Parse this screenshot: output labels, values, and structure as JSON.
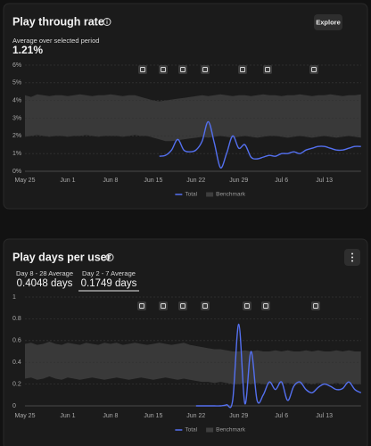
{
  "panels": [
    {
      "title": "Play through rate",
      "action": "Explore",
      "caption": "Average over selected period",
      "metric": "1.21%"
    },
    {
      "title": "Play days per user",
      "tabs": [
        {
          "label": "Day 8 - 28 Average",
          "value": "0.4048 days"
        },
        {
          "label": "Day 2 - 7 Average",
          "value": "0.1749 days"
        }
      ]
    }
  ],
  "chart_data": [
    {
      "type": "line",
      "categories": [
        "May 25",
        null,
        null,
        null,
        null,
        null,
        null,
        "Jun 1",
        null,
        null,
        null,
        null,
        null,
        null,
        "Jun 8",
        null,
        null,
        null,
        null,
        null,
        null,
        "Jun 15",
        null,
        null,
        null,
        null,
        null,
        null,
        "Jun 22",
        null,
        null,
        null,
        null,
        null,
        null,
        "Jun 29",
        null,
        null,
        null,
        null,
        null,
        null,
        "Jul 6",
        null,
        null,
        null,
        null,
        null,
        null,
        "Jul 13",
        null,
        null,
        null,
        null,
        null,
        null
      ],
      "series": [
        {
          "name": "Total",
          "color": "#5470f0",
          "values": [
            null,
            null,
            null,
            null,
            null,
            null,
            null,
            null,
            null,
            null,
            null,
            null,
            null,
            null,
            null,
            null,
            null,
            null,
            null,
            null,
            null,
            null,
            0.85,
            0.9,
            1.2,
            1.8,
            1.2,
            1.1,
            1.2,
            1.7,
            2.8,
            1.6,
            0.2,
            1.0,
            2.0,
            1.3,
            1.5,
            0.8,
            0.7,
            0.8,
            0.9,
            0.85,
            1.0,
            1.0,
            1.1,
            1.0,
            1.2,
            1.3,
            1.4,
            1.4,
            1.3,
            1.2,
            1.2,
            1.3,
            1.4,
            1.4
          ]
        },
        {
          "name": "Benchmark",
          "color": "#3e3e3e",
          "low": [
            1.95,
            2.0,
            2.05,
            2.0,
            1.95,
            2.0,
            2.0,
            1.95,
            2.0,
            2.0,
            2.05,
            2.0,
            1.95,
            2.0,
            2.0,
            2.0,
            1.95,
            2.0,
            2.05,
            2.0,
            2.0,
            1.9,
            1.8,
            1.7,
            1.7,
            1.75,
            1.8,
            1.85,
            1.9,
            1.95,
            1.9,
            1.95,
            2.0,
            1.95,
            1.9,
            1.95,
            2.0,
            1.95,
            1.9,
            1.95,
            2.0,
            2.0,
            1.95,
            1.9,
            1.95,
            2.0,
            1.95,
            1.9,
            1.95,
            2.0,
            1.95,
            1.9,
            1.95,
            2.0,
            1.95,
            1.9
          ],
          "high": [
            4.3,
            4.2,
            4.35,
            4.3,
            4.25,
            4.3,
            4.3,
            4.25,
            4.3,
            4.35,
            4.3,
            4.25,
            4.3,
            4.3,
            4.35,
            4.3,
            4.25,
            4.3,
            4.3,
            4.2,
            4.1,
            4.0,
            3.95,
            4.0,
            4.05,
            4.1,
            4.15,
            4.2,
            4.25,
            4.3,
            4.25,
            4.3,
            4.35,
            4.3,
            4.25,
            4.3,
            4.3,
            4.25,
            4.3,
            4.35,
            4.3,
            4.3,
            4.25,
            4.3,
            4.3,
            4.35,
            4.3,
            4.25,
            4.3,
            4.3,
            4.35,
            4.3,
            4.25,
            4.3,
            4.3,
            4.35
          ]
        }
      ],
      "ylim": [
        0,
        6
      ],
      "yticks": [
        {
          "value": 0,
          "label": "0%"
        },
        {
          "value": 1,
          "label": "1%"
        },
        {
          "value": 2,
          "label": "2%"
        },
        {
          "value": 3,
          "label": "3%"
        },
        {
          "value": 4,
          "label": "4%"
        },
        {
          "value": 5,
          "label": "5%"
        },
        {
          "value": 6,
          "label": "6%"
        }
      ],
      "grid": true
    },
    {
      "type": "line",
      "categories": [
        "May 25",
        null,
        null,
        null,
        null,
        null,
        null,
        "Jun 1",
        null,
        null,
        null,
        null,
        null,
        null,
        "Jun 8",
        null,
        null,
        null,
        null,
        null,
        null,
        "Jun 15",
        null,
        null,
        null,
        null,
        null,
        null,
        "Jun 22",
        null,
        null,
        null,
        null,
        null,
        null,
        "Jun 29",
        null,
        null,
        null,
        null,
        null,
        null,
        "Jul 6",
        null,
        null,
        null,
        null,
        null,
        null,
        "Jul 13",
        null,
        null,
        null,
        null,
        null,
        null
      ],
      "series": [
        {
          "name": "Total",
          "color": "#5470f0",
          "values": [
            null,
            null,
            null,
            null,
            null,
            null,
            null,
            null,
            null,
            null,
            null,
            null,
            null,
            null,
            null,
            null,
            null,
            null,
            null,
            null,
            null,
            null,
            null,
            null,
            null,
            null,
            null,
            null,
            0,
            0,
            0,
            0,
            0,
            0.01,
            0.05,
            0.75,
            0.02,
            0.5,
            0.05,
            0.1,
            0.22,
            0.15,
            0.22,
            0.05,
            0.18,
            0.22,
            0.15,
            0.12,
            0.17,
            0.2,
            0.18,
            0.15,
            0.16,
            0.22,
            0.15,
            0.12
          ]
        },
        {
          "name": "Benchmark",
          "color": "#3e3e3e",
          "low": [
            0.25,
            0.26,
            0.24,
            0.25,
            0.27,
            0.25,
            0.24,
            0.26,
            0.25,
            0.24,
            0.25,
            0.26,
            0.25,
            0.24,
            0.25,
            0.26,
            0.25,
            0.24,
            0.25,
            0.26,
            0.25,
            0.24,
            0.25,
            0.26,
            0.25,
            0.24,
            0.25,
            0.24,
            0.23,
            0.22,
            0.22,
            0.21,
            0.22,
            0.21,
            0.2,
            0.2,
            0.21,
            0.2,
            0.21,
            0.2,
            0.2,
            0.21,
            0.2,
            0.21,
            0.2,
            0.2,
            0.21,
            0.2,
            0.21,
            0.2,
            0.2,
            0.21,
            0.2,
            0.21,
            0.2,
            0.2
          ],
          "high": [
            0.57,
            0.58,
            0.56,
            0.57,
            0.59,
            0.57,
            0.56,
            0.58,
            0.57,
            0.56,
            0.58,
            0.57,
            0.56,
            0.58,
            0.57,
            0.58,
            0.56,
            0.57,
            0.58,
            0.57,
            0.56,
            0.57,
            0.58,
            0.57,
            0.56,
            0.57,
            0.58,
            0.56,
            0.55,
            0.54,
            0.53,
            0.52,
            0.52,
            0.51,
            0.5,
            0.5,
            0.51,
            0.5,
            0.51,
            0.5,
            0.5,
            0.51,
            0.5,
            0.51,
            0.5,
            0.5,
            0.51,
            0.5,
            0.51,
            0.5,
            0.5,
            0.51,
            0.5,
            0.51,
            0.5,
            0.5
          ]
        }
      ],
      "ylim": [
        0,
        1
      ],
      "yticks": [
        0,
        0.2,
        0.4,
        0.6,
        0.8,
        1
      ],
      "grid": true
    }
  ]
}
